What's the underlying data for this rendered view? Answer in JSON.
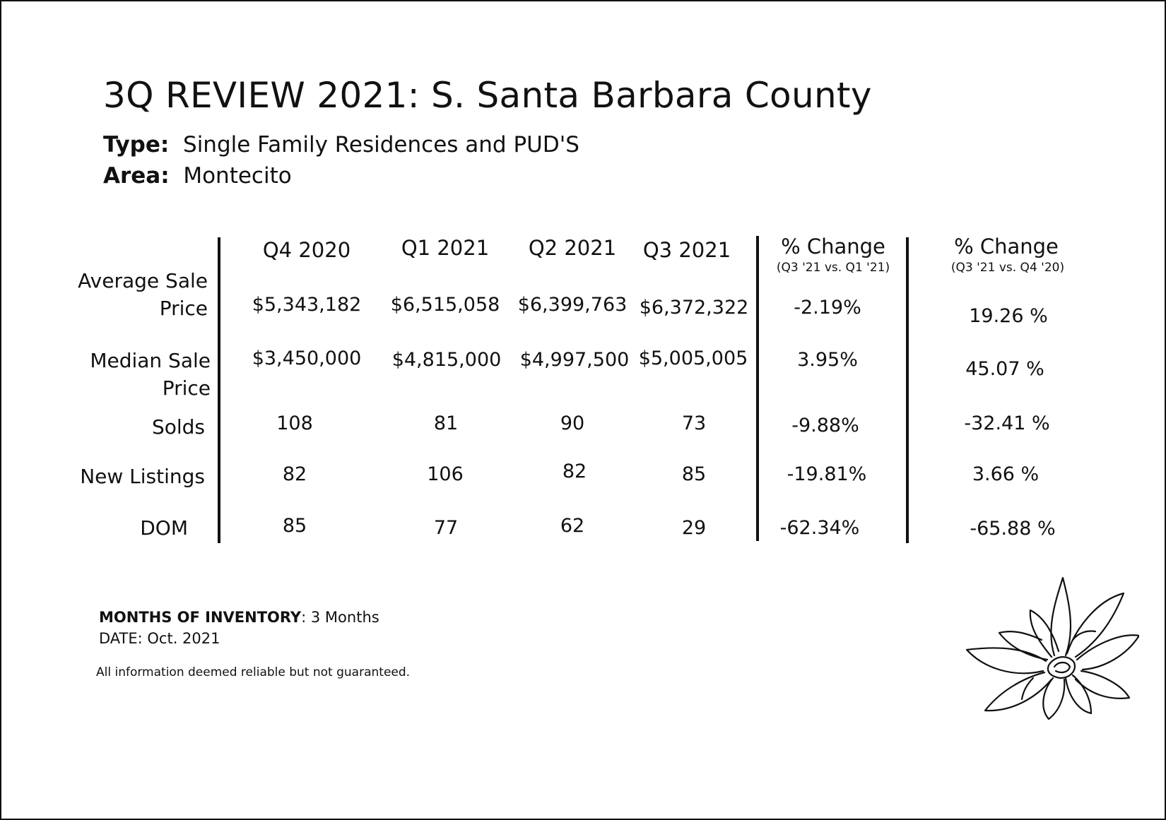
{
  "report": {
    "title": "3Q REVIEW 2021: S. Santa Barbara County",
    "type_label": "Type:",
    "type_value": "Single Family Residences and PUD'S",
    "area_label": "Area:",
    "area_value": "Montecito"
  },
  "table": {
    "columns": [
      {
        "label": "Q4 2020"
      },
      {
        "label": "Q1 2021"
      },
      {
        "label": "Q2 2021"
      },
      {
        "label": "Q3 2021"
      },
      {
        "label": "% Change",
        "sub": "(Q3 '21 vs. Q1 '21)"
      },
      {
        "label": "% Change",
        "sub": "(Q3 '21 vs. Q4 '20)"
      }
    ],
    "rows": [
      {
        "label": "Average Sale Price",
        "cells": [
          "$5,343,182",
          "$6,515,058",
          "$6,399,763",
          "$6,372,322",
          "-2.19%",
          "19.26 %"
        ]
      },
      {
        "label": "Median Sale Price",
        "cells": [
          "$3,450,000",
          "$4,815,000",
          "$4,997,500",
          "$5,005,005",
          "3.95%",
          "45.07 %"
        ]
      },
      {
        "label": "Solds",
        "cells": [
          "108",
          "81",
          "90",
          "73",
          "-9.88%",
          "-32.41 %"
        ]
      },
      {
        "label": "New Listings",
        "cells": [
          "82",
          "106",
          "82",
          "85",
          "-19.81%",
          "3.66 %"
        ]
      },
      {
        "label": "DOM",
        "cells": [
          "85",
          "77",
          "62",
          "29",
          "-62.34%",
          "-65.88 %"
        ]
      }
    ]
  },
  "footer": {
    "inventory_label": "MONTHS OF INVENTORY",
    "inventory_value": ": 3 Months",
    "date": "DATE: Oct. 2021",
    "disclaimer": "All information deemed reliable but not guaranteed."
  },
  "icons": {
    "flower": "magnolia-flower-icon"
  }
}
